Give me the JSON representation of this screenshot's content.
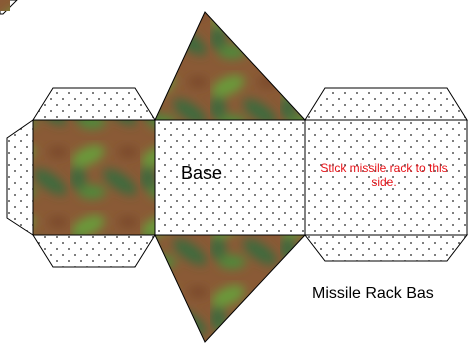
{
  "labels": {
    "base": "Base",
    "note": "Stick missile rack to this side.",
    "caption": "Missile Rack Bas"
  },
  "colors": {
    "outline": "#000000",
    "dots": "#222222",
    "camo_base": "#8a5a36",
    "camo_green": "#6a9a3a",
    "camo_dark": "#3c6a3c",
    "camo_brown": "#7a4a2a",
    "note_text": "#e8141a"
  },
  "icons": [
    "camouflage-texture",
    "dot-pattern"
  ]
}
